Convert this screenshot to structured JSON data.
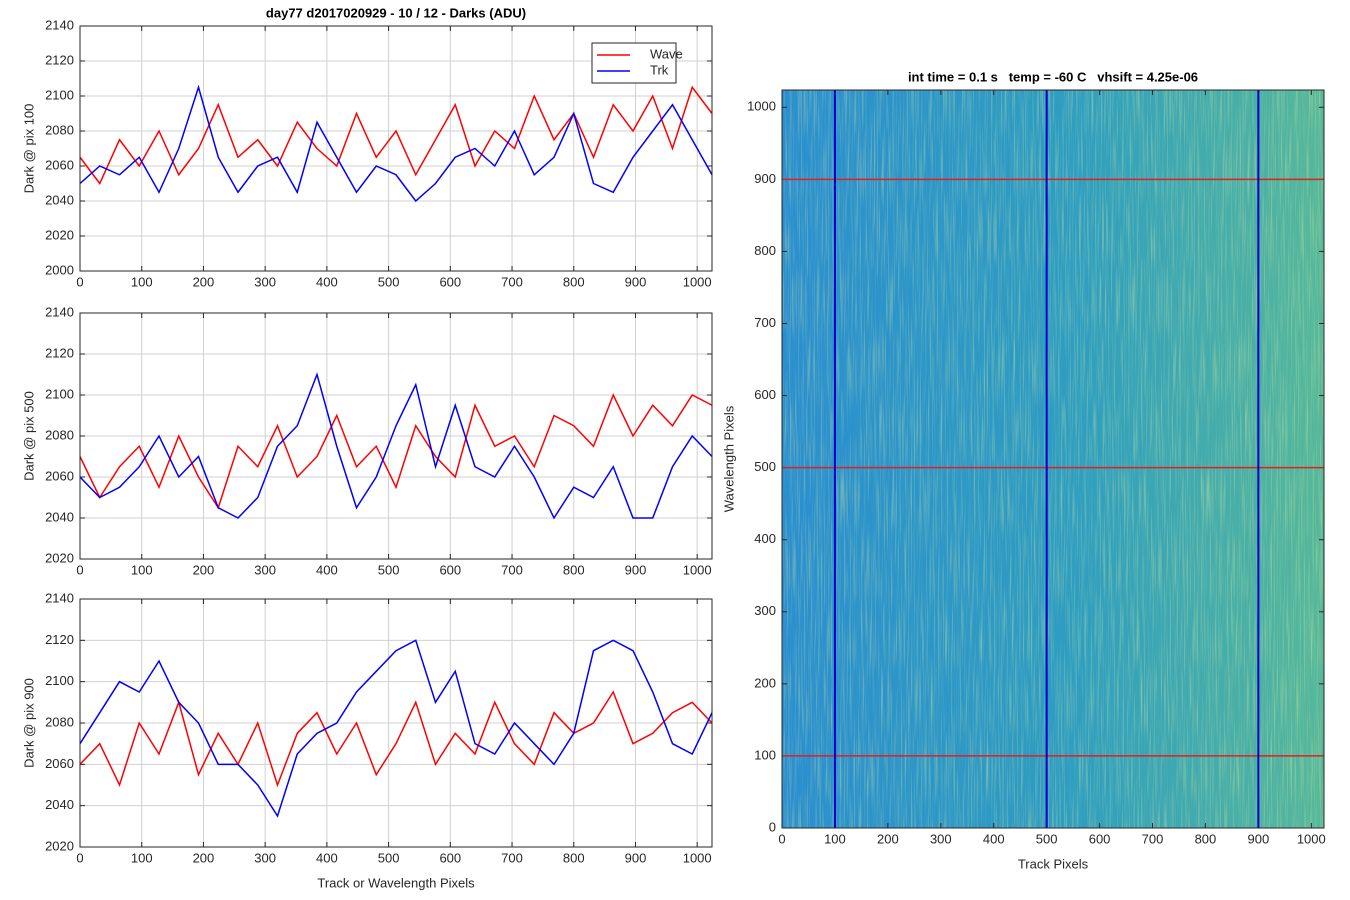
{
  "chart_data": [
    {
      "type": "line",
      "title": "day77 d2017020929 - 10 / 12 - Darks (ADU)",
      "ylabel": "Dark @ pix 100",
      "x": [
        0,
        32,
        64,
        96,
        128,
        160,
        192,
        224,
        256,
        288,
        320,
        352,
        384,
        416,
        448,
        480,
        512,
        544,
        576,
        608,
        640,
        672,
        704,
        736,
        768,
        800,
        832,
        864,
        896,
        928,
        960,
        992,
        1024
      ],
      "series": [
        {
          "name": "Wave",
          "color": "#ff0000",
          "values": [
            2065,
            2050,
            2075,
            2060,
            2080,
            2055,
            2070,
            2095,
            2065,
            2075,
            2060,
            2085,
            2070,
            2060,
            2090,
            2065,
            2080,
            2055,
            2075,
            2095,
            2060,
            2080,
            2070,
            2100,
            2075,
            2090,
            2065,
            2095,
            2080,
            2100,
            2070,
            2105,
            2090
          ]
        },
        {
          "name": "Trk",
          "color": "#0000ff",
          "values": [
            2050,
            2060,
            2055,
            2065,
            2045,
            2070,
            2105,
            2065,
            2045,
            2060,
            2065,
            2045,
            2085,
            2065,
            2045,
            2060,
            2055,
            2040,
            2050,
            2065,
            2070,
            2060,
            2080,
            2055,
            2065,
            2090,
            2050,
            2045,
            2065,
            2080,
            2095,
            2075,
            2055
          ]
        }
      ],
      "xlim": [
        0,
        1024
      ],
      "xticks": [
        0,
        100,
        200,
        300,
        400,
        500,
        600,
        700,
        800,
        900,
        1000
      ],
      "ylim": [
        2000,
        2140
      ],
      "yticks": [
        2000,
        2020,
        2040,
        2060,
        2080,
        2100,
        2120,
        2140
      ],
      "grid": true,
      "legend": "top-right"
    },
    {
      "type": "line",
      "ylabel": "Dark @ pix 500",
      "x": [
        0,
        32,
        64,
        96,
        128,
        160,
        192,
        224,
        256,
        288,
        320,
        352,
        384,
        416,
        448,
        480,
        512,
        544,
        576,
        608,
        640,
        672,
        704,
        736,
        768,
        800,
        832,
        864,
        896,
        928,
        960,
        992,
        1024
      ],
      "series": [
        {
          "color": "#ff0000",
          "values": [
            2070,
            2050,
            2065,
            2075,
            2055,
            2080,
            2060,
            2045,
            2075,
            2065,
            2085,
            2060,
            2070,
            2090,
            2065,
            2075,
            2055,
            2085,
            2070,
            2060,
            2095,
            2075,
            2080,
            2065,
            2090,
            2085,
            2075,
            2100,
            2080,
            2095,
            2085,
            2100,
            2095
          ]
        },
        {
          "color": "#0000ff",
          "values": [
            2060,
            2050,
            2055,
            2065,
            2080,
            2060,
            2070,
            2045,
            2040,
            2050,
            2075,
            2085,
            2110,
            2075,
            2045,
            2060,
            2085,
            2105,
            2065,
            2095,
            2065,
            2060,
            2075,
            2060,
            2040,
            2055,
            2050,
            2065,
            2040,
            2040,
            2065,
            2080,
            2070
          ]
        }
      ],
      "xlim": [
        0,
        1024
      ],
      "xticks": [
        0,
        100,
        200,
        300,
        400,
        500,
        600,
        700,
        800,
        900,
        1000
      ],
      "ylim": [
        2020,
        2140
      ],
      "yticks": [
        2020,
        2040,
        2060,
        2080,
        2100,
        2120,
        2140
      ],
      "grid": true
    },
    {
      "type": "line",
      "ylabel": "Dark @ pix 900",
      "xlabel": "Track or Wavelength Pixels",
      "x": [
        0,
        32,
        64,
        96,
        128,
        160,
        192,
        224,
        256,
        288,
        320,
        352,
        384,
        416,
        448,
        480,
        512,
        544,
        576,
        608,
        640,
        672,
        704,
        736,
        768,
        800,
        832,
        864,
        896,
        928,
        960,
        992,
        1024
      ],
      "series": [
        {
          "color": "#ff0000",
          "values": [
            2060,
            2070,
            2050,
            2080,
            2065,
            2090,
            2055,
            2075,
            2060,
            2080,
            2050,
            2075,
            2085,
            2065,
            2080,
            2055,
            2070,
            2090,
            2060,
            2075,
            2065,
            2090,
            2070,
            2060,
            2085,
            2075,
            2080,
            2095,
            2070,
            2075,
            2085,
            2090,
            2080
          ]
        },
        {
          "color": "#0000ff",
          "values": [
            2070,
            2085,
            2100,
            2095,
            2110,
            2090,
            2080,
            2060,
            2060,
            2050,
            2035,
            2065,
            2075,
            2080,
            2095,
            2105,
            2115,
            2120,
            2090,
            2105,
            2070,
            2065,
            2080,
            2070,
            2060,
            2075,
            2115,
            2120,
            2115,
            2095,
            2070,
            2065,
            2085
          ]
        }
      ],
      "xlim": [
        0,
        1024
      ],
      "xticks": [
        0,
        100,
        200,
        300,
        400,
        500,
        600,
        700,
        800,
        900,
        1000
      ],
      "ylim": [
        2020,
        2140
      ],
      "yticks": [
        2020,
        2040,
        2060,
        2080,
        2100,
        2120,
        2140
      ],
      "grid": true
    },
    {
      "type": "heatmap",
      "title": "int time = 0.1 s   temp = -60 C   vhsift = 4.25e-06",
      "xlabel": "Track Pixels",
      "ylabel": "Wavelength Pixels",
      "xlim": [
        0,
        1024
      ],
      "xticks": [
        0,
        100,
        200,
        300,
        400,
        500,
        600,
        700,
        800,
        900,
        1000
      ],
      "ylim": [
        0,
        1024
      ],
      "yticks": [
        0,
        100,
        200,
        300,
        400,
        500,
        600,
        700,
        800,
        900,
        1000
      ],
      "hlines": [
        100,
        500,
        900
      ],
      "hline_color": "#e02020",
      "vlines": [
        100,
        500,
        900
      ],
      "vline_color": "#0000cc"
    }
  ]
}
